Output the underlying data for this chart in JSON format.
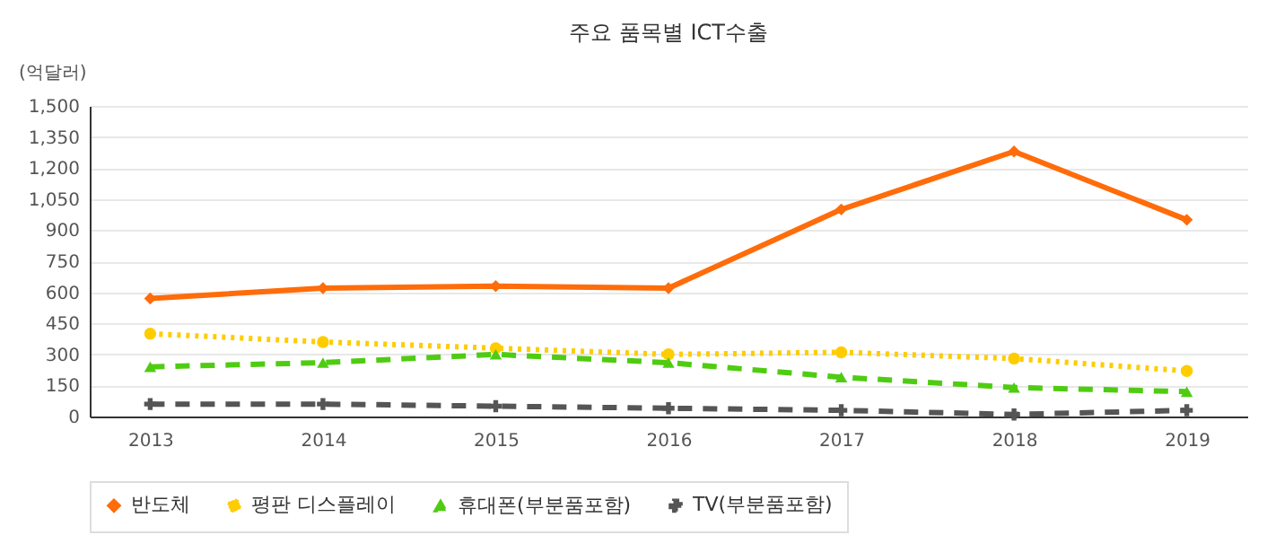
{
  "chart_data": {
    "type": "line",
    "title": "주요 품목별 ICT수출",
    "ylabel": "(억달러)",
    "categories": [
      "2013",
      "2014",
      "2015",
      "2016",
      "2017",
      "2018",
      "2019"
    ],
    "ylim": [
      0,
      1500
    ],
    "yticks": [
      0,
      150,
      300,
      450,
      600,
      750,
      900,
      {
        "value": 1050,
        "label": "1,050"
      },
      {
        "value": 1200,
        "label": "1,200"
      },
      {
        "value": 1350,
        "label": "1,350"
      },
      {
        "value": 1500,
        "label": "1,500"
      }
    ],
    "grid": "y",
    "legend": "bottom",
    "series": [
      {
        "name": "반도체",
        "color": "#ff6c0a",
        "marker": "diamond",
        "line_style": "solid",
        "values": [
          570,
          620,
          630,
          620,
          1000,
          1280,
          950
        ]
      },
      {
        "name": "평판 디스플레이",
        "color": "#ffcc00",
        "marker": "circle",
        "line_style": "dotted",
        "values": [
          400,
          360,
          330,
          300,
          310,
          280,
          220
        ]
      },
      {
        "name": "휴대폰(부분품포함)",
        "color": "#4fcc12",
        "marker": "triangle",
        "line_style": "dashed",
        "values": [
          240,
          260,
          300,
          260,
          190,
          140,
          120
        ]
      },
      {
        "name": "TV(부분품포함)",
        "color": "#555555",
        "marker": "cross",
        "line_style": "dashed",
        "values": [
          60,
          60,
          50,
          40,
          30,
          10,
          30
        ]
      }
    ]
  }
}
